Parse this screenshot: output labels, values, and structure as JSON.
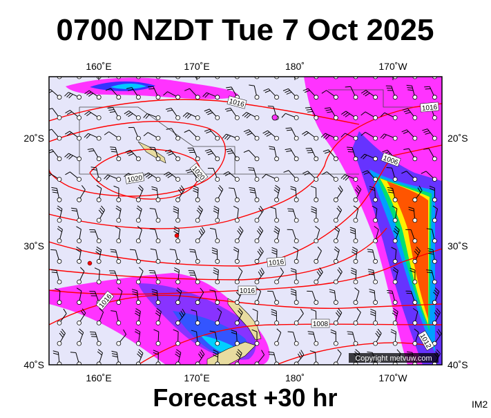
{
  "header": {
    "title": "0700 NZDT Tue 7 Oct 2025"
  },
  "map": {
    "lon_labels": [
      "160˚E",
      "170˚E",
      "180˚",
      "170˚W"
    ],
    "lat_labels": [
      "20˚S",
      "30˚S",
      "40˚S"
    ],
    "isobar_labels": [
      "1016",
      "1016",
      "1006",
      "1020",
      "1020",
      "1016",
      "1016",
      "1016",
      "1008",
      "1012"
    ],
    "copyright": "Copyright metvuw.com"
  },
  "footer": {
    "caption": "Forecast +30 hr",
    "id": "IM2"
  }
}
